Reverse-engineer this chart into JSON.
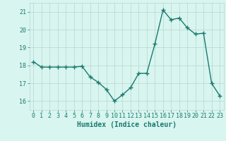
{
  "title": "",
  "xlabel": "Humidex (Indice chaleur)",
  "ylabel": "",
  "x": [
    0,
    1,
    2,
    3,
    4,
    5,
    6,
    7,
    8,
    9,
    10,
    11,
    12,
    13,
    14,
    15,
    16,
    17,
    18,
    19,
    20,
    21,
    22,
    23
  ],
  "y": [
    18.2,
    17.9,
    17.9,
    17.9,
    17.9,
    17.9,
    17.95,
    17.35,
    17.05,
    16.65,
    16.0,
    16.35,
    16.75,
    17.55,
    17.55,
    19.2,
    21.1,
    20.55,
    20.65,
    20.1,
    19.75,
    19.8,
    17.0,
    16.3
  ],
  "line_color": "#1a7a6e",
  "marker": "+",
  "marker_size": 4,
  "marker_linewidth": 1.0,
  "bg_color": "#d8f5f0",
  "grid_color": "#b8d4d0",
  "tick_label_color": "#1a7a6e",
  "axis_label_color": "#1a7a6e",
  "ylim": [
    15.5,
    21.5
  ],
  "yticks": [
    16,
    17,
    18,
    19,
    20,
    21
  ],
  "xticks": [
    0,
    1,
    2,
    3,
    4,
    5,
    6,
    7,
    8,
    9,
    10,
    11,
    12,
    13,
    14,
    15,
    16,
    17,
    18,
    19,
    20,
    21,
    22,
    23
  ],
  "tick_fontsize": 6,
  "xlabel_fontsize": 7,
  "line_width": 1.0
}
